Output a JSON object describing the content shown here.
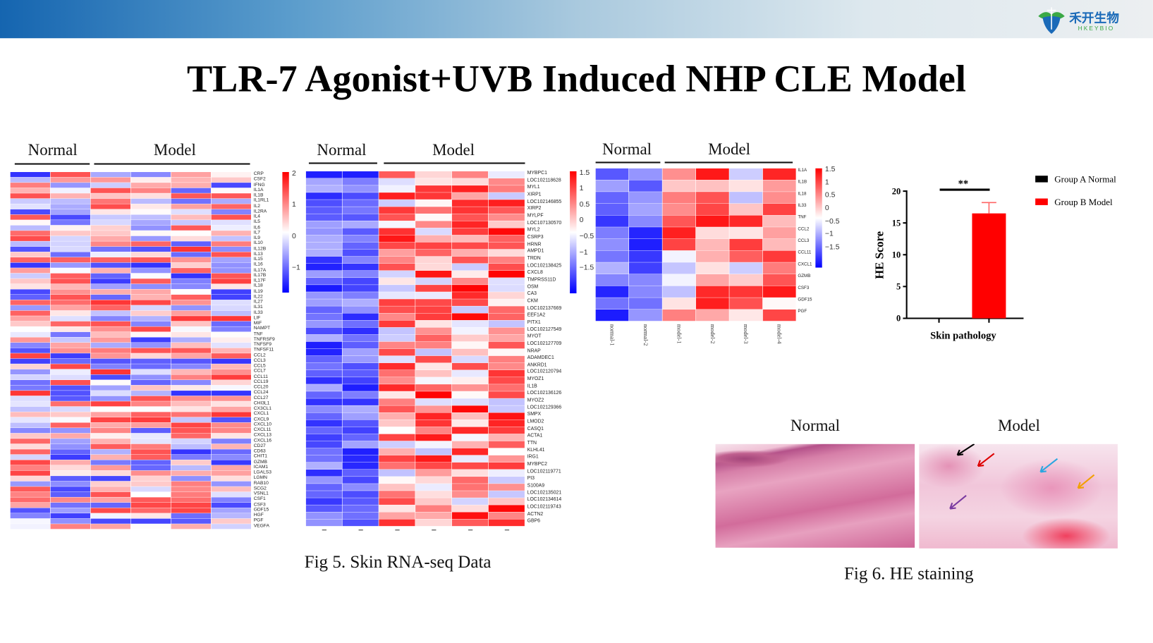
{
  "header": {
    "logo_cn": "禾开生物",
    "logo_en": "HKEYBIO",
    "brand_color": "#1565b0"
  },
  "title": "TLR-7 Agonist+UVB Induced NHP CLE Model",
  "fig5": {
    "caption": "Fig 5. Skin RNA-seq Data",
    "heatmap1": {
      "groups": [
        "Normal",
        "Model"
      ],
      "scale": [
        "2",
        "1",
        "0",
        "−1"
      ],
      "genes": [
        "CRP",
        "CSF2",
        "IFNG",
        "IL1A",
        "IL1B",
        "IL1RL1",
        "IL2",
        "IL2RA",
        "IL4",
        "IL5",
        "IL6",
        "IL7",
        "IL9",
        "IL10",
        "IL12B",
        "IL13",
        "IL15",
        "IL16",
        "IL17A",
        "IL17B",
        "IL17F",
        "IL18",
        "IL19",
        "IL22",
        "IL27",
        "IL31",
        "IL33",
        "LIF",
        "MIF",
        "NAMPT",
        "TNF",
        "TNFRSF9",
        "TNFSF9",
        "TNFSF11",
        "CCL2",
        "CCL3",
        "CCL5",
        "CCL7",
        "CCL11",
        "CCL19",
        "CCL20",
        "CCL24",
        "CCL27",
        "CHI3L1",
        "CX3CL1",
        "CXCL1",
        "CXCL9",
        "CXCL10",
        "CXCL11",
        "CXCL13",
        "CXCL16",
        "CD27",
        "CD63",
        "CHIT1",
        "GZMB",
        "ICAM1",
        "LGALS3",
        "LGMN",
        "RAB10",
        "SCG2",
        "VSNL1",
        "CSF1",
        "CSF3",
        "GDF15",
        "HGF",
        "PGF",
        "VEGFA"
      ]
    },
    "heatmap2": {
      "groups": [
        "Normal",
        "Model"
      ],
      "scale": [
        "1.5",
        "1",
        "0.5",
        "0",
        "−0.5",
        "−1",
        "−1.5"
      ],
      "genes": [
        "MYBPC1",
        "LOC102118628",
        "MYL1",
        "XIRP1",
        "LOC102146855",
        "XIRP2",
        "MYLPF",
        "LOC107130570",
        "MYL2",
        "CSRP3",
        "HRNR",
        "AMPD1",
        "TRDN",
        "LOC102138425",
        "CXCL8",
        "TMPRSS11D",
        "OSM",
        "CA3",
        "CKM",
        "LOC102137669",
        "EEF1A2",
        "PITX1",
        "LOC102127549",
        "MYOT",
        "LOC102127709",
        "NRAP",
        "ADAMDEC1",
        "ANKRD1",
        "LOC102120794",
        "MYOZ1",
        "IL1B",
        "LOC102136126",
        "MYOZ2",
        "LOC102129366",
        "SMPX",
        "LMOD2",
        "CASQ1",
        "ACTA1",
        "TTN",
        "KLHL41",
        "IRG1",
        "MYBPC2",
        "LOC102119771",
        "PI3",
        "S100A9",
        "LOC102135021",
        "LOC102134614",
        "LOC102119743",
        "ACTN2",
        "GBP6"
      ]
    },
    "heatmap3": {
      "groups": [
        "Normal",
        "Model"
      ],
      "scale": [
        "1.5",
        "1",
        "0.5",
        "0",
        "−0.5",
        "−1",
        "−1.5"
      ],
      "genes": [
        "IL1A",
        "IL1B",
        "IL18",
        "IL33",
        "TNF",
        "CCL2",
        "CCL3",
        "CCL11",
        "CXCL1",
        "GZMB",
        "CSF3",
        "GDF15",
        "PGF"
      ],
      "samples": [
        "normal-1",
        "normal-2",
        "model-1",
        "model-2",
        "model-3",
        "model-4"
      ]
    }
  },
  "fig6": {
    "caption": "Fig 6. HE staining",
    "image_labels": [
      "Normal",
      "Model"
    ],
    "chart_data": {
      "type": "bar",
      "categories": [
        "Group A Normal",
        "Group B Model"
      ],
      "values": [
        0,
        16.5
      ],
      "errors": [
        0,
        1.7
      ],
      "colors": [
        "#000000",
        "#ff0000"
      ],
      "xlabel": "Skin pathology",
      "ylabel": "HE Score",
      "ylim": [
        0,
        20
      ],
      "yticks": [
        "0",
        "5",
        "10",
        "15",
        "20"
      ],
      "significance": "**",
      "legend": [
        "Group A Normal",
        "Group B Model"
      ],
      "legend_position": "right"
    }
  }
}
